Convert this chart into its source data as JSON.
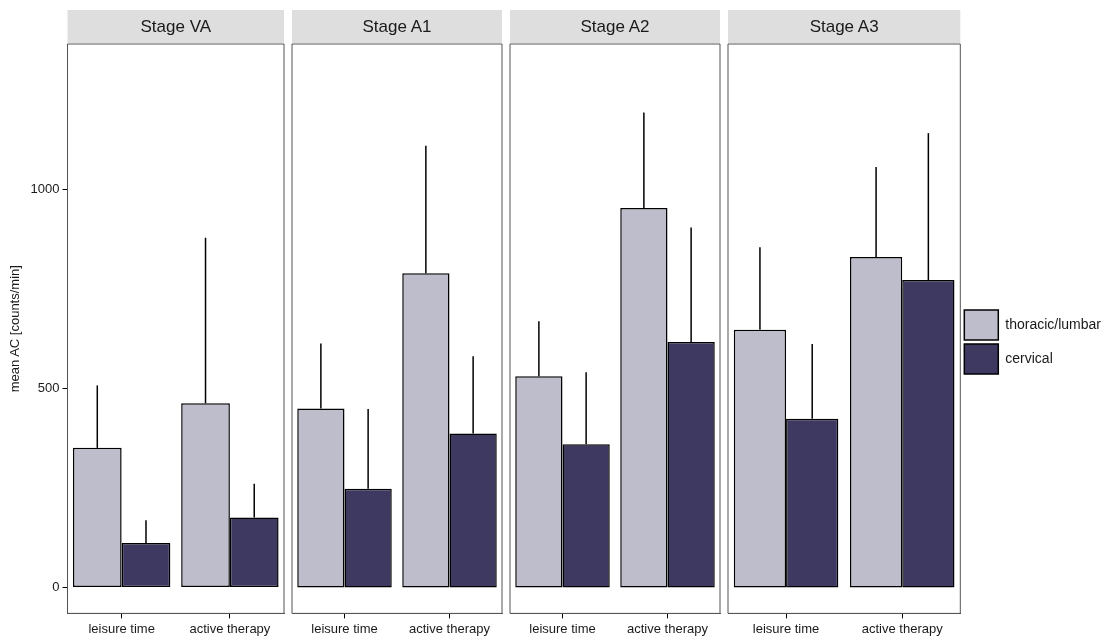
{
  "chart_data": [
    {
      "type": "bar",
      "title": "Stage VA",
      "ylabel": "mean AC [counts/min]",
      "categories": [
        "leisure time",
        "active therapy"
      ],
      "ylim": [
        -65,
        1366
      ],
      "yticks": [
        0,
        500,
        1000
      ],
      "grid": false,
      "legend": false,
      "series": [
        {
          "color": "#bebdcc",
          "values": [
            351,
            463
          ],
          "errors": [
            [
              351,
              508
            ],
            [
              463,
              879
            ]
          ]
        },
        {
          "color": "#3e3960",
          "values": [
            112,
            176
          ],
          "errors": [
            [
              112,
              169
            ],
            [
              176,
              261
            ]
          ]
        }
      ]
    },
    {
      "type": "bar",
      "title": "Stage A1",
      "categories": [
        "leisure time",
        "active therapy"
      ],
      "ylim": [
        -65,
        1366
      ],
      "yticks": [
        0,
        500,
        1000
      ],
      "grid": false,
      "legend": false,
      "tick_labels": "x",
      "series": [
        {
          "color": "#bebdcc",
          "values": [
            450,
            790
          ],
          "errors": [
            [
              450,
              613
            ],
            [
              790,
              1110
            ]
          ]
        },
        {
          "color": "#3e3960",
          "values": [
            248,
            387
          ],
          "errors": [
            [
              248,
              449
            ],
            [
              387,
              581
            ]
          ]
        }
      ]
    },
    {
      "type": "bar",
      "title": "Stage A2",
      "categories": [
        "leisure time",
        "active therapy"
      ],
      "ylim": [
        -65,
        1366
      ],
      "yticks": [
        0,
        500,
        1000
      ],
      "grid": false,
      "legend": false,
      "tick_labels": "x",
      "series": [
        {
          "color": "#bebdcc",
          "values": [
            531,
            954
          ],
          "errors": [
            [
              531,
              669
            ],
            [
              954,
              1194
            ]
          ]
        },
        {
          "color": "#3e3960",
          "values": [
            360,
            617
          ],
          "errors": [
            [
              360,
              541
            ],
            [
              617,
              905
            ]
          ]
        }
      ]
    },
    {
      "type": "bar",
      "title": "Stage A3",
      "categories": [
        "leisure time",
        "active therapy"
      ],
      "ylim": [
        -65,
        1366
      ],
      "yticks": [
        0,
        500,
        1000
      ],
      "grid": false,
      "legend": "right",
      "tick_labels": "x",
      "series": [
        {
          "name": "thoracic/lumbar",
          "color": "#bebdcc",
          "values": [
            648,
            831
          ],
          "errors": [
            [
              648,
              855
            ],
            [
              831,
              1057
            ]
          ]
        },
        {
          "name": "cervical",
          "color": "#3e3960",
          "values": [
            424,
            773
          ],
          "errors": [
            [
              424,
              612
            ],
            [
              773,
              1142
            ]
          ]
        }
      ]
    }
  ]
}
